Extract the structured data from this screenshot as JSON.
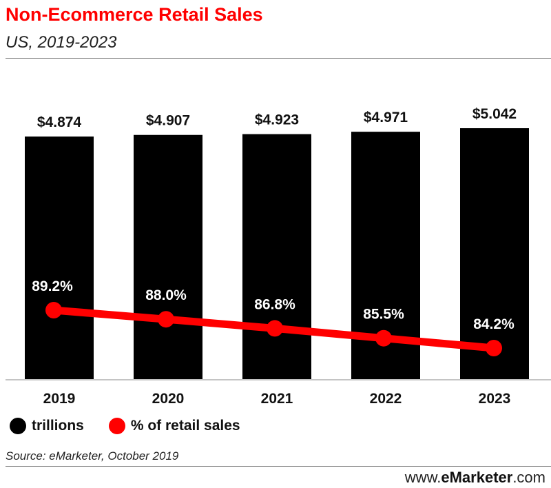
{
  "header": {
    "title": "Non-Ecommerce Retail Sales",
    "subtitle": "US, 2019-2023"
  },
  "legend": [
    {
      "label": "trillions",
      "color": "#000000"
    },
    {
      "label": "% of retail sales",
      "color": "#ff0000"
    }
  ],
  "footer": {
    "source": "Source: eMarketer, October 2019",
    "brand_prefix": "www.",
    "brand_name": "eMarketer",
    "brand_suffix": ".com"
  },
  "chart_data": {
    "type": "bar",
    "categories": [
      "2019",
      "2020",
      "2021",
      "2022",
      "2023"
    ],
    "series": [
      {
        "name": "trillions",
        "type": "bar",
        "color": "#000000",
        "values": [
          4.874,
          4.907,
          4.923,
          4.971,
          5.042
        ],
        "labels": [
          "$4.874",
          "$4.907",
          "$4.923",
          "$4.971",
          "$5.042"
        ]
      },
      {
        "name": "% of retail sales",
        "type": "line",
        "color": "#ff0000",
        "values": [
          89.2,
          88.0,
          86.8,
          85.5,
          84.2
        ],
        "labels": [
          "89.2%",
          "88.0%",
          "86.8%",
          "85.5%",
          "84.2%"
        ]
      }
    ],
    "legend_position": "bottom-left",
    "grid": false
  }
}
